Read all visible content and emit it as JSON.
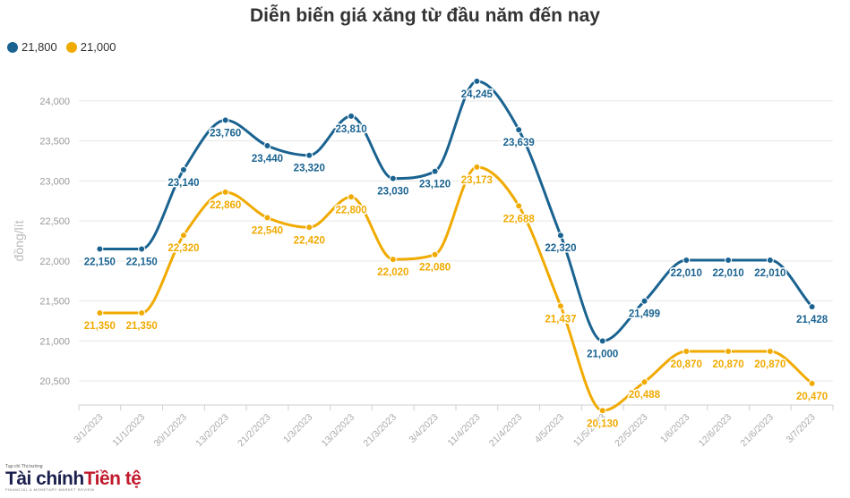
{
  "chart_data": {
    "type": "line",
    "title": "Diễn biến giá xăng từ đầu năm đến nay",
    "ylabel": "đồng/lít",
    "xlabel": "",
    "ylim": [
      20200,
      24300
    ],
    "yticks": [
      20500,
      21000,
      21500,
      22000,
      22500,
      23000,
      23500,
      24000
    ],
    "ytick_labels": [
      "20,500",
      "21,000",
      "21,500",
      "22,000",
      "22,500",
      "23,000",
      "23,500",
      "24,000"
    ],
    "grid": true,
    "legend_position": "top-left",
    "categories": [
      "3/1/2023",
      "11/1/2023",
      "30/1/2023",
      "13/2/2023",
      "21/2/2023",
      "1/3/2023",
      "13/3/2023",
      "21/3/2023",
      "3/4/2023",
      "11/4/2023",
      "21/4/2023",
      "4/5/2023",
      "11/5/2023",
      "22/5/2023",
      "1/6/2023",
      "12/6/2023",
      "21/6/2023",
      "3/7/2023"
    ],
    "series": [
      {
        "name": "21,800",
        "color": "#1a6391",
        "values": [
          22150,
          22150,
          23140,
          23760,
          23440,
          23320,
          23810,
          23030,
          23120,
          24245,
          23639,
          22320,
          21000,
          21499,
          22010,
          22010,
          22010,
          21428
        ]
      },
      {
        "name": "21,000",
        "color": "#f0aa00",
        "values": [
          21350,
          21350,
          22320,
          22860,
          22540,
          22420,
          22800,
          22020,
          22080,
          23173,
          22688,
          21437,
          20130,
          20488,
          20870,
          20870,
          20870,
          20470
        ]
      }
    ]
  },
  "legend": {
    "items": [
      "21,800",
      "21,000"
    ]
  },
  "logo": {
    "small": "Tạp chí Thị trường",
    "main_a": "Tài chính",
    "main_b": "Tiền tệ",
    "sub": "FINANCIAL & MONETARY MARKET REVIEW"
  }
}
